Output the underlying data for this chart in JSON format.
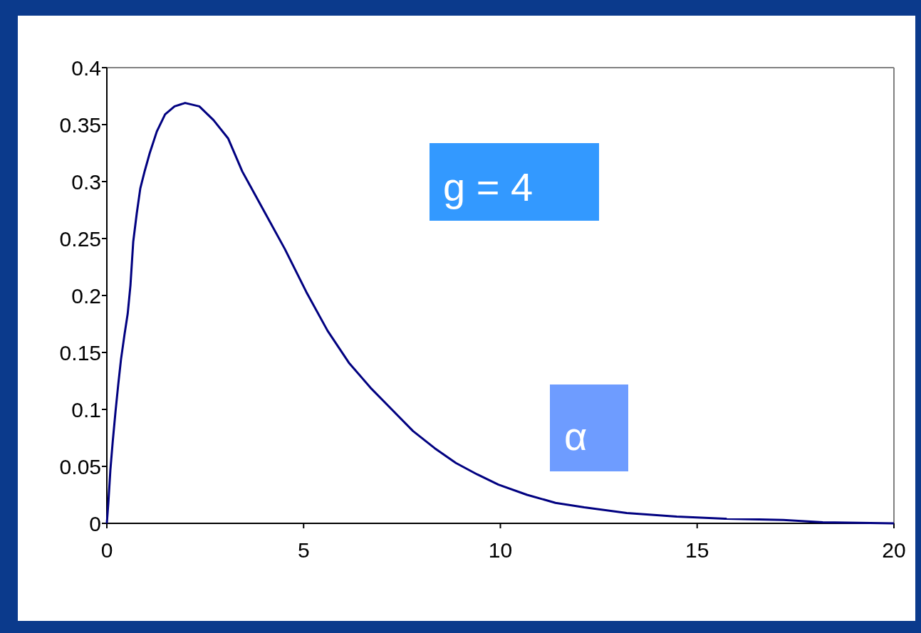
{
  "chart_data": {
    "type": "line",
    "annotations": [
      "g = 4",
      "α"
    ],
    "x": [
      0,
      0.04,
      0.09,
      0.15,
      0.22,
      0.29,
      0.36,
      0.45,
      0.53,
      0.6,
      0.67,
      0.76,
      0.85,
      0.96,
      1.09,
      1.27,
      1.48,
      1.72,
      1.99,
      2.35,
      2.71,
      3.08,
      3.44,
      3.98,
      4.52,
      5.07,
      5.61,
      6.15,
      6.7,
      7.24,
      7.78,
      8.33,
      8.87,
      9.41,
      9.95,
      10.68,
      11.4,
      12.13,
      13.21,
      14.48,
      15.75,
      17.19,
      18.19,
      20
    ],
    "series": [
      {
        "color": "#000080",
        "values": [
          0,
          0.019,
          0.047,
          0.072,
          0.098,
          0.122,
          0.144,
          0.166,
          0.184,
          0.209,
          0.247,
          0.272,
          0.294,
          0.309,
          0.325,
          0.344,
          0.359,
          0.366,
          0.369,
          0.366,
          0.354,
          0.338,
          0.309,
          0.275,
          0.241,
          0.203,
          0.169,
          0.141,
          0.119,
          0.1,
          0.081,
          0.066,
          0.053,
          0.043,
          0.034,
          0.025,
          0.018,
          0.014,
          0.009,
          0.006,
          0.004,
          0.003,
          0.001,
          0
        ]
      }
    ],
    "xlim": [
      0,
      20
    ],
    "xticks": [
      0,
      5,
      10,
      15,
      20
    ],
    "ylim": [
      0,
      0.4
    ],
    "yticks": [
      0,
      0.05,
      0.1,
      0.15,
      0.2,
      0.25,
      0.3,
      0.35,
      0.4
    ],
    "grid": false
  }
}
